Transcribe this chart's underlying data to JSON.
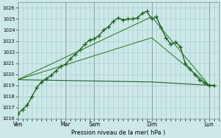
{
  "title": "Pression niveau de la mer( hPa )",
  "background_color": "#cce8e8",
  "grid_color": "#aacccc",
  "ylim": [
    1016,
    1026.5
  ],
  "yticks": [
    1016,
    1017,
    1018,
    1019,
    1020,
    1021,
    1022,
    1023,
    1024,
    1025,
    1026
  ],
  "day_labels": [
    "Ven",
    "Mar",
    "Sam",
    "Dim",
    "Lun"
  ],
  "day_positions": [
    0,
    10,
    16,
    28,
    40
  ],
  "xlim": [
    0,
    42
  ],
  "series": [
    {
      "x": [
        0,
        1,
        2,
        3,
        4,
        5,
        6,
        7,
        8,
        9,
        10,
        11,
        12,
        13,
        14,
        15,
        16,
        17,
        18,
        19,
        20,
        21,
        22,
        23,
        24,
        25,
        26,
        27,
        28,
        29,
        30,
        31,
        32,
        33,
        34,
        35,
        36,
        37,
        38,
        39,
        40,
        41
      ],
      "y": [
        1016.4,
        1016.8,
        1017.2,
        1018.0,
        1018.8,
        1019.3,
        1019.6,
        1019.9,
        1020.3,
        1020.7,
        1020.9,
        1021.4,
        1021.8,
        1022.2,
        1022.7,
        1023.1,
        1023.2,
        1023.5,
        1024.0,
        1024.3,
        1024.8,
        1025.1,
        1024.9,
        1025.0,
        1025.0,
        1025.1,
        1025.5,
        1025.7,
        1025.0,
        1025.2,
        1024.2,
        1023.3,
        1022.7,
        1022.9,
        1022.5,
        1021.0,
        1020.5,
        1020.0,
        1019.5,
        1019.2,
        1019.0,
        1019.0
      ],
      "color": "#1a5c1a",
      "linewidth": 1.0,
      "marker": "+",
      "markersize": 4,
      "markeredgewidth": 0.9
    },
    {
      "x": [
        0,
        28,
        40
      ],
      "y": [
        1019.5,
        1019.3,
        1019.0
      ],
      "color": "#1a5c1a",
      "linewidth": 0.8,
      "marker": null
    },
    {
      "x": [
        0,
        28,
        40
      ],
      "y": [
        1019.5,
        1023.3,
        1019.0
      ],
      "color": "#2d7a2d",
      "linewidth": 0.8,
      "marker": null
    },
    {
      "x": [
        0,
        28,
        40
      ],
      "y": [
        1019.5,
        1025.2,
        1019.0
      ],
      "color": "#2d7a2d",
      "linewidth": 0.8,
      "marker": null
    }
  ]
}
